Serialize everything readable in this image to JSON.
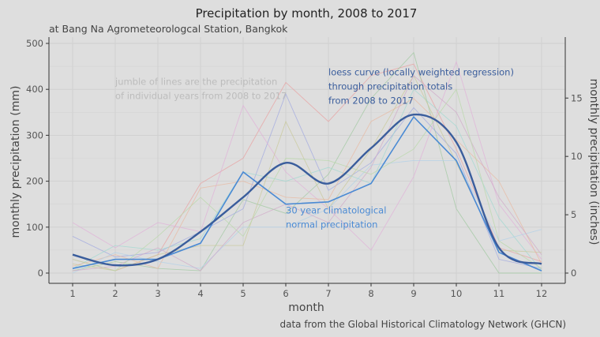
{
  "chart_data": {
    "type": "line",
    "title": "Precipitation by month, 2008 to 2017",
    "subtitle": "at Bang Na Agrometeorologcal Station, Bangkok",
    "caption": "data from the Global Historical Climatology Network (GHCN)",
    "xlabel": "month",
    "ylabel": "monthly precipitation (mm)",
    "ylabel_right": "monthly precipitation (inches)",
    "x": [
      1,
      2,
      3,
      4,
      5,
      6,
      7,
      8,
      9,
      10,
      11,
      12
    ],
    "xlim": [
      1,
      12
    ],
    "ylim": [
      0,
      500
    ],
    "yticks": [
      0,
      100,
      200,
      300,
      400,
      500
    ],
    "yticks_right": [
      0,
      5,
      10,
      15
    ],
    "grid": true,
    "series": [
      {
        "values": [
          30,
          5,
          40,
          195,
          250,
          415,
          330,
          430,
          455,
          270,
          55,
          25
        ],
        "role": "year"
      },
      {
        "values": [
          5,
          25,
          10,
          5,
          160,
          130,
          215,
          380,
          480,
          140,
          0,
          0
        ],
        "role": "year"
      },
      {
        "values": [
          80,
          35,
          45,
          90,
          140,
          390,
          180,
          240,
          360,
          260,
          30,
          10
        ],
        "role": "year"
      },
      {
        "values": [
          10,
          60,
          50,
          75,
          220,
          200,
          230,
          195,
          400,
          320,
          120,
          5
        ],
        "role": "year"
      },
      {
        "values": [
          110,
          55,
          110,
          90,
          365,
          220,
          140,
          50,
          210,
          460,
          150,
          30
        ],
        "role": "year"
      },
      {
        "values": [
          20,
          5,
          40,
          60,
          60,
          330,
          140,
          270,
          430,
          240,
          50,
          45
        ],
        "role": "year"
      },
      {
        "values": [
          15,
          40,
          10,
          185,
          200,
          165,
          160,
          330,
          380,
          290,
          200,
          20
        ],
        "role": "year"
      },
      {
        "values": [
          0,
          45,
          25,
          10,
          100,
          100,
          140,
          235,
          245,
          245,
          70,
          95
        ],
        "role": "year"
      },
      {
        "values": [
          5,
          15,
          55,
          5,
          110,
          150,
          110,
          230,
          430,
          350,
          165,
          40
        ],
        "role": "year"
      },
      {
        "values": [
          30,
          5,
          80,
          165,
          80,
          250,
          245,
          215,
          270,
          400,
          70,
          10
        ],
        "role": "year"
      },
      {
        "name": "30 year climatological normal precipitation",
        "values": [
          10,
          30,
          30,
          65,
          220,
          150,
          155,
          195,
          340,
          245,
          45,
          5
        ],
        "role": "normal",
        "color": "#4a8ad4"
      },
      {
        "name": "loess curve (locally weighted regression) through precipitation totals from 2008 to 2017",
        "values": [
          40,
          17,
          30,
          90,
          165,
          240,
          195,
          272,
          345,
          285,
          55,
          20
        ],
        "role": "loess",
        "color": "#3a5d9c"
      }
    ],
    "annotations": [
      {
        "lines": [
          "jumble of lines are the precipitation",
          "of individual years from 2008 to 2017"
        ],
        "color": "#bcbcbc",
        "x": 2.0,
        "y": 410,
        "anchor": "start"
      },
      {
        "lines": [
          "loess curve (locally weighted regression)",
          "through precipitation totals",
          "from 2008 to 2017"
        ],
        "color": "#3a5d9c",
        "x": 7.0,
        "y": 430,
        "anchor": "start"
      },
      {
        "lines": [
          "30 year climatological",
          "normal precipitation"
        ],
        "color": "#4a8ad4",
        "x": 6.0,
        "y": 130,
        "anchor": "start"
      }
    ],
    "year_colors": [
      "#e8a0a0",
      "#a0c8a0",
      "#a0a8e0",
      "#a0d8d0",
      "#e0b0d8",
      "#c8c898",
      "#e8b8a0",
      "#b0d0e8",
      "#d0a8c8",
      "#b8d8a8"
    ]
  }
}
